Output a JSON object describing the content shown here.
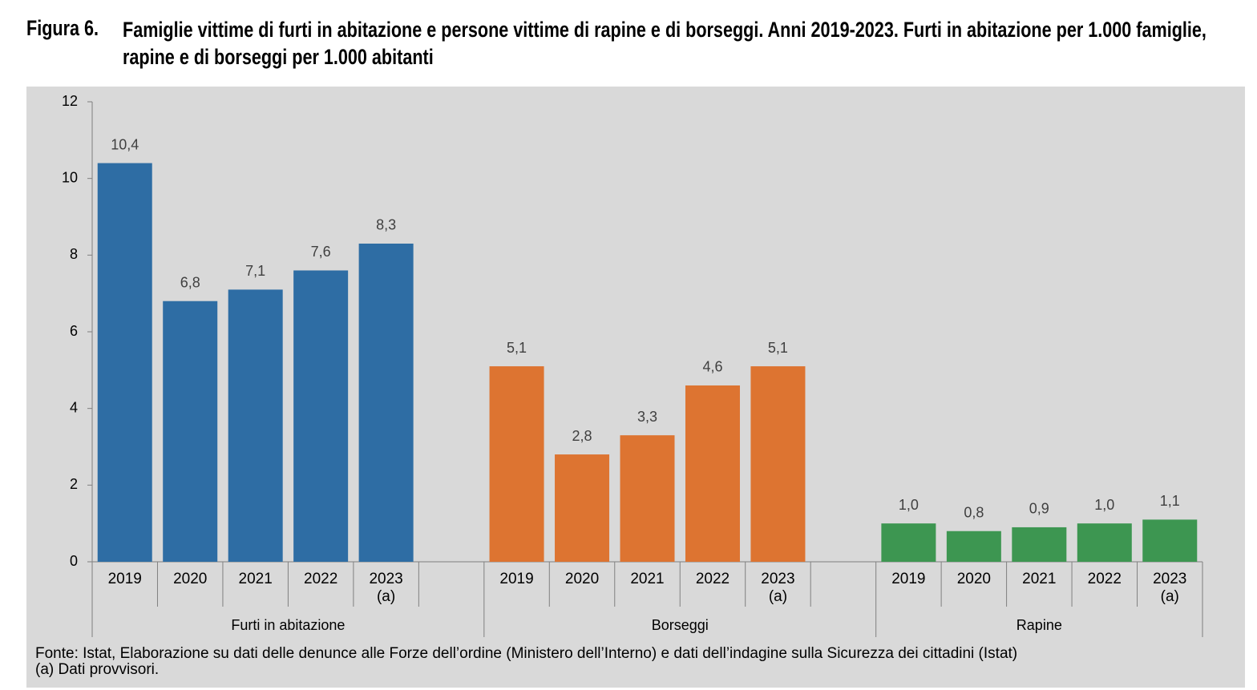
{
  "chart_data": {
    "type": "bar",
    "figure_label": "Figura 6.",
    "title": "Famiglie vittime di furti in abitazione e persone vittime di rapine e di borseggi. Anni 2019-2023. Furti in abitazione per 1.000 famiglie, rapine e di borseggi per 1.000 abitanti",
    "ylim": [
      0,
      12
    ],
    "yticks": [
      0,
      2,
      4,
      6,
      8,
      10,
      12
    ],
    "groups": [
      {
        "name": "Furti in abitazione",
        "color": "#2e6da4",
        "categories": [
          "2019",
          "2020",
          "2021",
          "2022",
          "2023 (a)"
        ],
        "values": [
          10.4,
          6.8,
          7.1,
          7.6,
          8.3
        ],
        "value_labels": [
          "10,4",
          "6,8",
          "7,1",
          "7,6",
          "8,3"
        ]
      },
      {
        "name": "Borseggi",
        "color": "#dd7431",
        "categories": [
          "2019",
          "2020",
          "2021",
          "2022",
          "2023 (a)"
        ],
        "values": [
          5.1,
          2.8,
          3.3,
          4.6,
          5.1
        ],
        "value_labels": [
          "5,1",
          "2,8",
          "3,3",
          "4,6",
          "5,1"
        ]
      },
      {
        "name": "Rapine",
        "color": "#3d9651",
        "categories": [
          "2019",
          "2020",
          "2021",
          "2022",
          "2023 (a)"
        ],
        "values": [
          1.0,
          0.8,
          0.9,
          1.0,
          1.1
        ],
        "value_labels": [
          "1,0",
          "0,8",
          "0,9",
          "1,0",
          "1,1"
        ]
      }
    ],
    "source": "Fonte: Istat, Elaborazione su dati delle denunce alle Forze dell’ordine (Ministero dell’Interno) e dati dell’indagine sulla Sicurezza dei cittadini (Istat)",
    "note": "(a) Dati provvisori."
  }
}
